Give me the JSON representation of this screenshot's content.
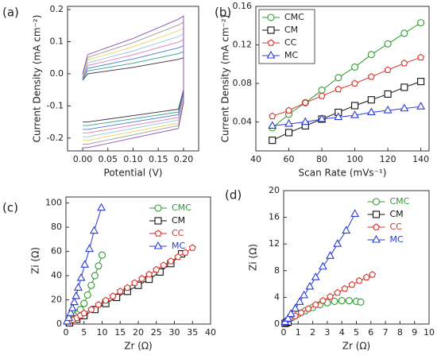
{
  "chart_data": [
    {
      "type": "line",
      "annotation": "(a)",
      "xlabel": "Potential (V)",
      "ylabel": "Current Density (mA cm⁻²)",
      "x": [
        0,
        0.01,
        0.1,
        0.19,
        0.2,
        0.2,
        0.19,
        0.1,
        0.01,
        0
      ],
      "series": [
        {
          "color": "#3a2b3a",
          "values": [
            -0.02,
            0.0,
            0.02,
            0.045,
            0.05,
            -0.05,
            -0.11,
            -0.13,
            -0.15,
            -0.15
          ]
        },
        {
          "color": "#2e9e8e",
          "values": [
            -0.017,
            0.009,
            0.033,
            0.063,
            0.069,
            -0.056,
            -0.119,
            -0.14,
            -0.161,
            -0.161
          ]
        },
        {
          "color": "#4a78d8",
          "values": [
            -0.014,
            0.017,
            0.046,
            0.081,
            0.087,
            -0.061,
            -0.127,
            -0.15,
            -0.173,
            -0.173
          ]
        },
        {
          "color": "#e07ab8",
          "values": [
            -0.011,
            0.026,
            0.059,
            0.099,
            0.106,
            -0.067,
            -0.136,
            -0.16,
            -0.184,
            -0.184
          ]
        },
        {
          "color": "#8fc3e8",
          "values": [
            -0.009,
            0.034,
            0.071,
            0.116,
            0.124,
            -0.073,
            -0.144,
            -0.17,
            -0.196,
            -0.196
          ]
        },
        {
          "color": "#e8d45a",
          "values": [
            -0.006,
            0.043,
            0.084,
            0.134,
            0.143,
            -0.079,
            -0.153,
            -0.18,
            -0.207,
            -0.207
          ]
        },
        {
          "color": "#9a9a9a",
          "values": [
            -0.003,
            0.051,
            0.097,
            0.152,
            0.161,
            -0.084,
            -0.161,
            -0.19,
            -0.219,
            -0.219
          ]
        },
        {
          "color": "#8a4fb0",
          "values": [
            0.0,
            0.06,
            0.11,
            0.17,
            0.18,
            -0.09,
            -0.17,
            -0.2,
            -0.23,
            -0.23
          ]
        }
      ],
      "xlim": [
        -0.03,
        0.23
      ],
      "xticks": [
        {
          "value": 0,
          "label": "0.00"
        },
        0.05,
        {
          "value": 0.1,
          "label": "0.10"
        },
        0.15,
        {
          "value": 0.2,
          "label": "0.20"
        }
      ],
      "ylim": [
        -0.24,
        0.21
      ],
      "yticks": [
        -0.2,
        -0.1,
        {
          "value": 0,
          "label": "0.0"
        },
        0.1,
        0.2
      ]
    },
    {
      "type": "line",
      "annotation": "(b)",
      "xlabel": "Scan Rate (mVs⁻¹)",
      "ylabel": "Current Density (mA cm⁻²)",
      "legend": "upper left",
      "legend_frame": true,
      "x": [
        50,
        60,
        70,
        80,
        90,
        100,
        110,
        120,
        130,
        140
      ],
      "series": [
        {
          "name": "CMC",
          "color": "#2e9a2e",
          "marker": "circle",
          "values": [
            0.034,
            0.048,
            0.06,
            0.073,
            0.086,
            0.097,
            0.11,
            0.121,
            0.132,
            0.143
          ]
        },
        {
          "name": "CM",
          "color": "#111111",
          "marker": "square",
          "values": [
            0.021,
            0.029,
            0.036,
            0.043,
            0.05,
            0.057,
            0.063,
            0.069,
            0.076,
            0.082
          ]
        },
        {
          "name": "CC",
          "color": "#d8322a",
          "marker": "pentagon",
          "values": [
            0.046,
            0.052,
            0.06,
            0.067,
            0.074,
            0.08,
            0.087,
            0.094,
            0.101,
            0.107
          ]
        },
        {
          "name": "MC",
          "color": "#2a3ad8",
          "marker": "triangle",
          "values": [
            0.036,
            0.038,
            0.04,
            0.043,
            0.045,
            0.047,
            0.05,
            0.052,
            0.054,
            0.056
          ]
        }
      ],
      "xlim": [
        40,
        145
      ],
      "xticks": [
        40,
        60,
        80,
        100,
        120,
        140
      ],
      "ylim": [
        0.01,
        0.16
      ],
      "yticks": [
        0.04,
        0.08,
        0.12,
        0.16
      ]
    },
    {
      "type": "line",
      "annotation": "(c)",
      "xlabel": "Zr (Ω)",
      "ylabel": "Zi (Ω)",
      "legend": "upper center",
      "series": [
        {
          "name": "CMC",
          "color": "#2e9a2e",
          "marker": "circle",
          "x": [
            0.5,
            1,
            1.5,
            2,
            2.5,
            3,
            3.5,
            4,
            5,
            6,
            7,
            8,
            9,
            10
          ],
          "values": [
            1,
            2,
            3,
            4,
            6,
            8,
            10,
            12,
            17,
            24,
            32,
            40,
            48,
            57
          ]
        },
        {
          "name": "CM",
          "color": "#111111",
          "marker": "square",
          "x": [
            1,
            3,
            5,
            8,
            11,
            14,
            17,
            20,
            23,
            26,
            29,
            32
          ],
          "values": [
            1,
            4,
            7,
            12,
            17,
            22,
            27,
            32,
            37,
            43,
            50,
            58
          ]
        },
        {
          "name": "CC",
          "color": "#d8322a",
          "marker": "pentagon",
          "x": [
            1,
            2,
            3,
            4,
            5,
            7,
            9,
            11,
            13,
            15,
            17,
            19,
            21,
            23,
            25,
            27,
            29,
            31,
            33,
            35
          ],
          "values": [
            2,
            3.5,
            5,
            7,
            9,
            12,
            16,
            19.5,
            23,
            27,
            30,
            34,
            37.5,
            41,
            45,
            48.5,
            52,
            55.5,
            59,
            63
          ]
        },
        {
          "name": "MC",
          "color": "#2a3ad8",
          "marker": "triangle",
          "x": [
            0.3,
            0.8,
            1.3,
            1.8,
            2.3,
            2.8,
            3.4,
            4.2,
            5.2,
            6.5,
            7.8,
            9.8
          ],
          "values": [
            2,
            5,
            9,
            13,
            18,
            23,
            30,
            38,
            49,
            62,
            77,
            96
          ]
        }
      ],
      "xlim": [
        0,
        40
      ],
      "xticks": [
        0,
        5,
        10,
        15,
        20,
        25,
        30,
        35,
        40
      ],
      "ylim": [
        0,
        105
      ],
      "yticks": [
        0,
        20,
        40,
        60,
        80,
        100
      ]
    },
    {
      "type": "line",
      "annotation": "(d)",
      "xlabel": "Zr (Ω)",
      "ylabel": "Zi (Ω)",
      "legend": "upper center",
      "series": [
        {
          "name": "CMC",
          "color": "#2e9a2e",
          "marker": "circle",
          "x": [
            0.1,
            0.3,
            0.6,
            1,
            1.5,
            2,
            2.5,
            3,
            3.5,
            4,
            4.5,
            5,
            5.3
          ],
          "values": [
            0.2,
            0.6,
            1,
            1.5,
            2,
            2.5,
            2.9,
            3.2,
            3.4,
            3.5,
            3.5,
            3.4,
            3.3
          ]
        },
        {
          "name": "CM",
          "color": "#111111",
          "marker": "square",
          "x": [
            0.1,
            0.2,
            0.3
          ],
          "values": [
            0.1,
            0.2,
            0.3
          ]
        },
        {
          "name": "CC",
          "color": "#d8322a",
          "marker": "pentagon",
          "x": [
            0.1,
            0.4,
            0.8,
            1.2,
            1.7,
            2.2,
            2.7,
            3.2,
            3.7,
            4.2,
            4.7,
            5.2,
            5.7,
            6.1
          ],
          "values": [
            0.2,
            0.7,
            1.2,
            1.7,
            2.3,
            2.9,
            3.5,
            4.1,
            4.7,
            5.3,
            5.9,
            6.5,
            7,
            7.4
          ]
        },
        {
          "name": "MC",
          "color": "#2a3ad8",
          "marker": "triangle",
          "x": [
            0.1,
            0.3,
            0.5,
            0.8,
            1.1,
            1.4,
            1.8,
            2.2,
            2.7,
            3.2,
            3.7,
            4.3,
            4.9
          ],
          "values": [
            0.3,
            0.8,
            1.5,
            2.3,
            3.3,
            4.3,
            5.6,
            7,
            8.6,
            10.2,
            12,
            14,
            16.5
          ]
        }
      ],
      "xlim": [
        0,
        10
      ],
      "xticks": [
        0,
        1,
        2,
        3,
        4,
        5,
        6,
        7,
        8,
        9,
        10
      ],
      "ylim": [
        0,
        20
      ],
      "yticks": [
        0,
        4,
        8,
        12,
        16,
        20
      ]
    }
  ]
}
